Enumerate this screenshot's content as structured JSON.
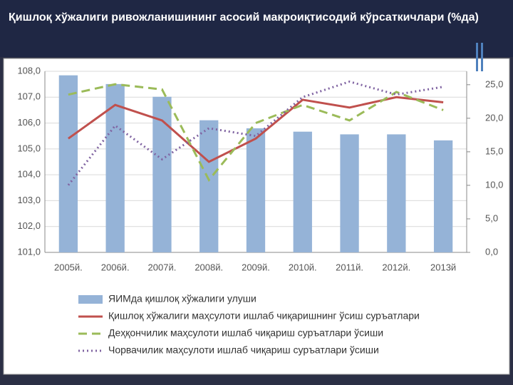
{
  "chart_data": {
    "type": "combo",
    "title": "Қишлоқ хўжалиги ривожланишининг асосий макроиқтисодий кўрсаткичлари (%да)",
    "categories": [
      "2005й.",
      "2006й.",
      "2007й.",
      "2008й.",
      "2009й.",
      "2010й.",
      "2011й.",
      "2012й.",
      "2013й"
    ],
    "ylim": [
      101,
      108
    ],
    "yticks": [
      {
        "value": 101,
        "label": "101,0"
      },
      {
        "value": 102,
        "label": "102,0"
      },
      {
        "value": 103,
        "label": "103,0"
      },
      {
        "value": 104,
        "label": "104,0"
      },
      {
        "value": 105,
        "label": "105,0"
      },
      {
        "value": 106,
        "label": "106,0"
      },
      {
        "value": 107,
        "label": "107,0"
      },
      {
        "value": 108,
        "label": "108,0"
      }
    ],
    "y2lim": [
      0,
      27
    ],
    "y2ticks": [
      {
        "value": 0,
        "label": "0,0"
      },
      {
        "value": 5,
        "label": "5,0"
      },
      {
        "value": 10,
        "label": "10,0"
      },
      {
        "value": 15,
        "label": "15,0"
      },
      {
        "value": 20,
        "label": "20,0"
      },
      {
        "value": 25,
        "label": "25,0"
      }
    ],
    "grid": true,
    "series": [
      {
        "name": "ЯИМда қишлоқ хўжалиги улуши",
        "type": "bar",
        "axis": "y2",
        "color": "#95b3d7",
        "values": [
          26.4,
          25.1,
          23.2,
          19.7,
          18.5,
          18.0,
          17.6,
          17.6,
          16.7
        ]
      },
      {
        "name": "Қишлоқ хўжалиги маҳсулоти ишлаб чиқаришнинг ўсиш суръатлари",
        "type": "line",
        "dash": "solid",
        "color": "#c0504d",
        "values": [
          105.4,
          106.7,
          106.1,
          104.5,
          105.4,
          106.9,
          106.6,
          107.0,
          106.8
        ]
      },
      {
        "name": "Деҳқончилик маҳсулоти ишлаб чиқариш суръатлари ўсиши",
        "type": "line",
        "dash": "dashed",
        "color": "#9bbb59",
        "values": [
          107.1,
          107.5,
          107.3,
          103.8,
          106.0,
          106.7,
          106.1,
          107.2,
          106.5
        ]
      },
      {
        "name": "Чорвачилик маҳсулоти ишлаб чиқариш суръатлари ўсиши",
        "type": "line",
        "dash": "dotted",
        "color": "#8064a2",
        "values": [
          103.6,
          105.9,
          104.6,
          105.8,
          105.5,
          107.0,
          107.6,
          107.1,
          107.4
        ]
      }
    ]
  }
}
